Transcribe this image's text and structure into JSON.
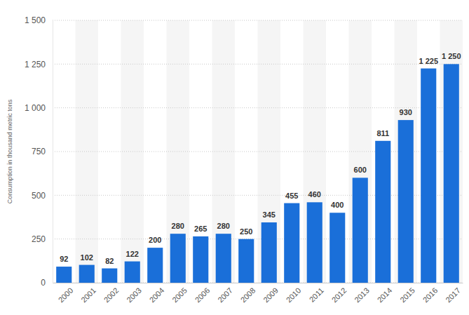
{
  "chart_data": {
    "type": "bar",
    "y_label": "Consumption in thousand metric tons",
    "categories": [
      "2000",
      "2001",
      "2002",
      "2003",
      "2004",
      "2005",
      "2006",
      "2007",
      "2008",
      "2009",
      "2010",
      "2011",
      "2012",
      "2013",
      "2014",
      "2015",
      "2016",
      "2017"
    ],
    "values": [
      92,
      102,
      82,
      122,
      200,
      280,
      265,
      280,
      250,
      345,
      455,
      460,
      400,
      600,
      811,
      930,
      1225,
      1250
    ],
    "value_labels": [
      "92",
      "102",
      "82",
      "122",
      "200",
      "280",
      "265",
      "280",
      "250",
      "345",
      "455",
      "460",
      "400",
      "600",
      "811",
      "930",
      "1 225",
      "1 250"
    ],
    "color": "#1a6fd9",
    "ylim": [
      0,
      1500
    ],
    "yticks": [
      0,
      250,
      500,
      750,
      {
        "value": 1000,
        "label": "1 000"
      },
      {
        "value": 1250,
        "label": "1 250"
      },
      {
        "value": 1500,
        "label": "1 500"
      }
    ],
    "grid": true,
    "data_labels": true
  }
}
